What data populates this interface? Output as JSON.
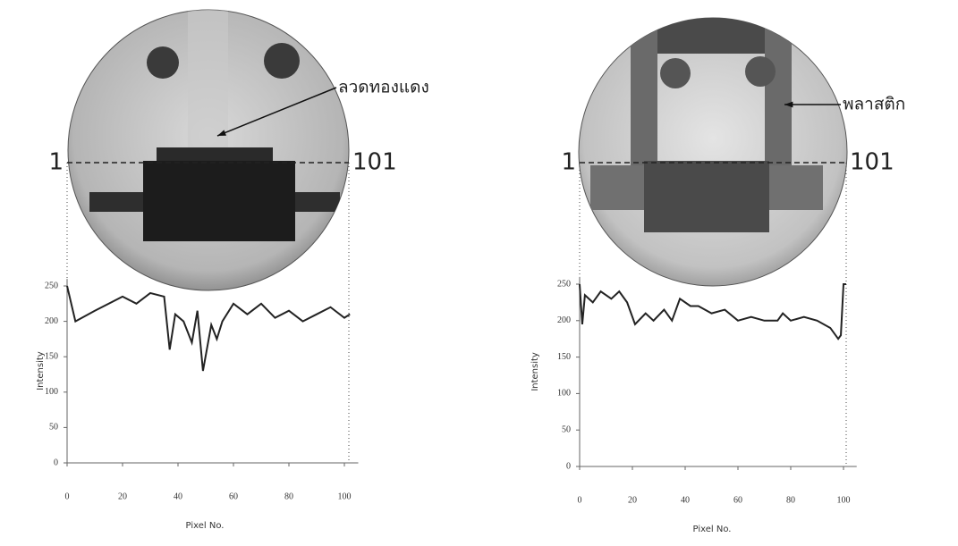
{
  "chart_data": [
    {
      "type": "line",
      "y_label": "Intensity",
      "x_label": "Pixel No.",
      "annotation": "ลวดทองแดง",
      "profile_labels": [
        "1",
        "101"
      ],
      "x": [
        0,
        3,
        10,
        20,
        25,
        30,
        35,
        37,
        39,
        42,
        45,
        47,
        49,
        52,
        54,
        56,
        60,
        65,
        70,
        75,
        80,
        85,
        90,
        95,
        100,
        102
      ],
      "values": [
        250,
        200,
        215,
        235,
        225,
        240,
        235,
        160,
        210,
        200,
        170,
        215,
        130,
        195,
        175,
        200,
        225,
        210,
        225,
        205,
        215,
        200,
        210,
        220,
        205,
        210
      ],
      "color": "#222222",
      "xlim": [
        0,
        105
      ],
      "ylim": [
        0,
        260
      ],
      "xticks": [
        0,
        20,
        40,
        60,
        80,
        100
      ],
      "yticks": [
        0,
        50,
        100,
        150,
        200,
        250
      ]
    },
    {
      "type": "line",
      "y_label": "Intensity",
      "x_label": "Pixel No.",
      "annotation": "พลาสติก",
      "profile_labels": [
        "1",
        "101"
      ],
      "x": [
        0,
        1,
        2,
        5,
        8,
        12,
        15,
        18,
        21,
        25,
        28,
        32,
        35,
        38,
        42,
        45,
        50,
        55,
        60,
        65,
        70,
        75,
        77,
        80,
        85,
        90,
        95,
        98,
        99,
        100,
        101
      ],
      "values": [
        250,
        195,
        235,
        225,
        240,
        230,
        240,
        225,
        195,
        210,
        200,
        215,
        200,
        230,
        220,
        220,
        210,
        215,
        200,
        205,
        200,
        200,
        210,
        200,
        205,
        200,
        190,
        175,
        180,
        250,
        250
      ],
      "color": "#222222",
      "xlim": [
        0,
        105
      ],
      "ylim": [
        0,
        260
      ],
      "xticks": [
        0,
        20,
        40,
        60,
        80,
        100
      ],
      "yticks": [
        0,
        50,
        100,
        150,
        200,
        250
      ]
    }
  ]
}
